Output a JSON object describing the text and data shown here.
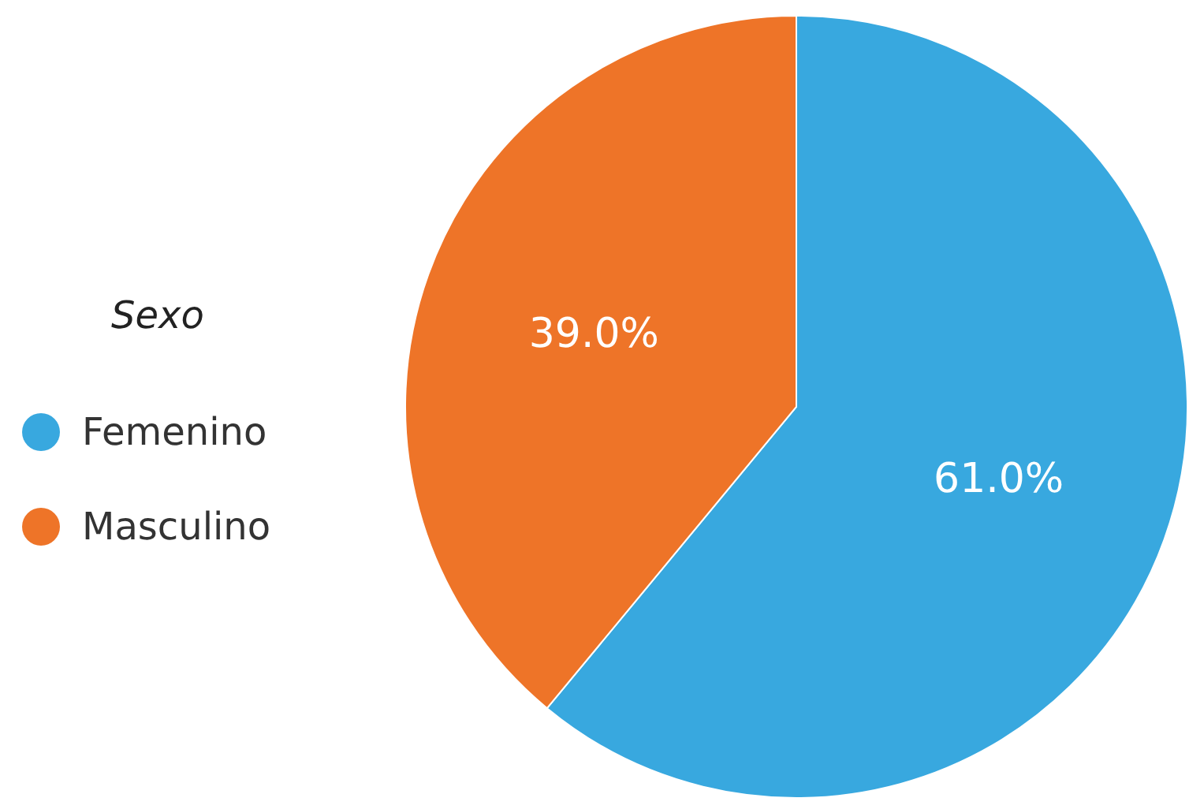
{
  "chart_data": {
    "type": "pie",
    "legend_title": "Sexo",
    "categories": [
      "Femenino",
      "Masculino"
    ],
    "values": [
      61.0,
      39.0
    ],
    "colors": [
      "#38a8df",
      "#ee7428"
    ],
    "value_labels": [
      "61.0%",
      "39.0%"
    ],
    "legend": "left"
  }
}
